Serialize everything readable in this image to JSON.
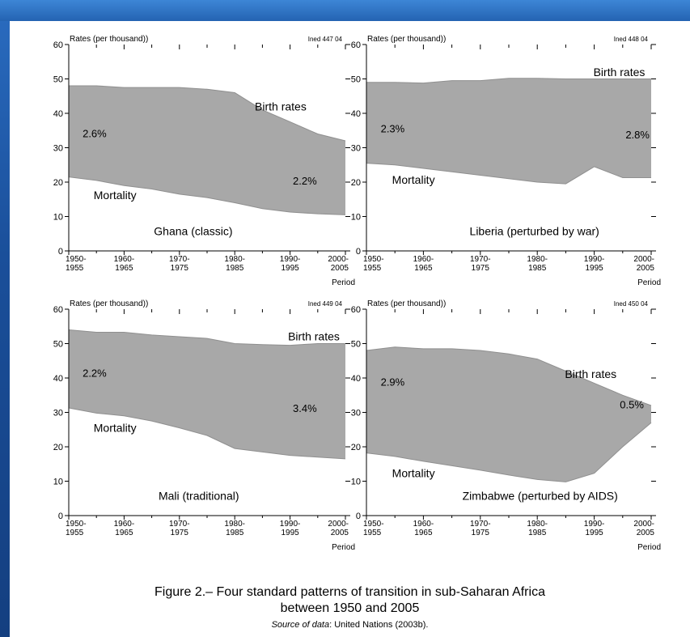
{
  "page": {
    "caption_main_1": "Figure 2.– Four standard patterns of transition in sub-Saharan Africa",
    "caption_main_2": "between 1950 and 2005",
    "caption_source_label": "Source of data",
    "caption_source_rest": ": United Nations (2003b).",
    "colors": {
      "band": "#a8a8a8",
      "panel": "#ffffff",
      "slide_bg": "#1c56a3",
      "axis": "#000000"
    }
  },
  "chart_data": [
    {
      "type": "area",
      "ylabel": "Rates (per thousand))",
      "id_label": "Ined 447 04",
      "xlabel": "Period",
      "x": [
        1952.5,
        1957.5,
        1962.5,
        1967.5,
        1972.5,
        1977.5,
        1982.5,
        1987.5,
        1992.5,
        1997.5,
        2002.5
      ],
      "x_ticks": [
        "1950-\n1955",
        "1960-\n1965",
        "1970-\n1975",
        "1980-\n1985",
        "1990-\n1995",
        "2000-\n2005"
      ],
      "ylim": [
        0,
        60
      ],
      "y_ticks": [
        0,
        10,
        20,
        30,
        40,
        50,
        60
      ],
      "series": [
        {
          "name": "Birth rates",
          "values": [
            48,
            48,
            47.5,
            47.5,
            47.5,
            47,
            46,
            41,
            37.5,
            34,
            32
          ]
        },
        {
          "name": "Mortality",
          "values": [
            21.5,
            20.5,
            19,
            18,
            16.5,
            15.5,
            14,
            12.3,
            11.3,
            10.8,
            10.5
          ]
        }
      ],
      "annotations": [
        {
          "text": "Birth rates",
          "x": 1994,
          "y": 42
        },
        {
          "text": "Mortality",
          "x": 1957,
          "y": 16.2
        },
        {
          "text": "2.6%",
          "x": 1955,
          "y": 34.2
        },
        {
          "text": "2.2%",
          "x": 1993,
          "y": 20.5
        },
        {
          "text": "Ghana (classic)",
          "x": 1975,
          "y": 5.8
        }
      ]
    },
    {
      "type": "area",
      "ylabel": "Rates (per thousand))",
      "id_label": "Ined 448 04",
      "xlabel": "Period",
      "x": [
        1952.5,
        1957.5,
        1962.5,
        1967.5,
        1972.5,
        1977.5,
        1982.5,
        1987.5,
        1992.5,
        1997.5,
        2002.5
      ],
      "x_ticks": [
        "1950-\n1955",
        "1960-\n1965",
        "1970-\n1975",
        "1980-\n1985",
        "1990-\n1995",
        "2000-\n2005"
      ],
      "ylim": [
        0,
        60
      ],
      "y_ticks": [
        0,
        10,
        20,
        30,
        40,
        50,
        60
      ],
      "series": [
        {
          "name": "Birth rates",
          "values": [
            49,
            49,
            48.8,
            49.5,
            49.5,
            50.2,
            50.2,
            50,
            50,
            50,
            50
          ]
        },
        {
          "name": "Mortality",
          "values": [
            25.5,
            25,
            24,
            23,
            22,
            21,
            20,
            19.5,
            24.5,
            21.3,
            21.3
          ]
        }
      ],
      "annotations": [
        {
          "text": "Birth rates",
          "x": 2000,
          "y": 52
        },
        {
          "text": "Mortality",
          "x": 1957,
          "y": 20.7
        },
        {
          "text": "2.3%",
          "x": 1955,
          "y": 35.7
        },
        {
          "text": "2.8%",
          "x": 1998,
          "y": 33.9
        },
        {
          "text": "Liberia (perturbed by war)",
          "x": 1982,
          "y": 5.8
        }
      ]
    },
    {
      "type": "area",
      "ylabel": "Rates (per thousand))",
      "id_label": "Ined 449 04",
      "xlabel": "Period",
      "x": [
        1952.5,
        1957.5,
        1962.5,
        1967.5,
        1972.5,
        1977.5,
        1982.5,
        1987.5,
        1992.5,
        1997.5,
        2002.5
      ],
      "x_ticks": [
        "1950-\n1955",
        "1960-\n1965",
        "1970-\n1975",
        "1980-\n1985",
        "1990-\n1995",
        "2000-\n2005"
      ],
      "ylim": [
        0,
        60
      ],
      "y_ticks": [
        0,
        10,
        20,
        30,
        40,
        50,
        60
      ],
      "series": [
        {
          "name": "Birth rates",
          "values": [
            54,
            53.3,
            53.3,
            52.5,
            52,
            51.5,
            50,
            49.7,
            49.5,
            50,
            50
          ]
        },
        {
          "name": "Mortality",
          "values": [
            31.3,
            29.8,
            29,
            27.5,
            25.5,
            23.3,
            19.5,
            18.5,
            17.5,
            17,
            16.5
          ]
        }
      ],
      "annotations": [
        {
          "text": "Birth rates",
          "x": 2000,
          "y": 52.1
        },
        {
          "text": "Mortality",
          "x": 1957,
          "y": 25.5
        },
        {
          "text": "2.2%",
          "x": 1955,
          "y": 41.5
        },
        {
          "text": "3.4%",
          "x": 1993,
          "y": 31.3
        },
        {
          "text": "Mali (traditional)",
          "x": 1976,
          "y": 5.8
        }
      ]
    },
    {
      "type": "area",
      "ylabel": "Rates (per thousand))",
      "id_label": "Ined 450 04",
      "xlabel": "Period",
      "x": [
        1952.5,
        1957.5,
        1962.5,
        1967.5,
        1972.5,
        1977.5,
        1982.5,
        1987.5,
        1992.5,
        1997.5,
        2002.5
      ],
      "x_ticks": [
        "1950-\n1955",
        "1960-\n1965",
        "1970-\n1975",
        "1980-\n1985",
        "1990-\n1995",
        "2000-\n2005"
      ],
      "ylim": [
        0,
        60
      ],
      "y_ticks": [
        0,
        10,
        20,
        30,
        40,
        50,
        60
      ],
      "series": [
        {
          "name": "Birth rates",
          "values": [
            48,
            49,
            48.5,
            48.5,
            48,
            47,
            45.5,
            42,
            38.5,
            35,
            32
          ]
        },
        {
          "name": "Mortality",
          "values": [
            18.2,
            17.2,
            15.8,
            14.5,
            13.2,
            11.8,
            10.5,
            9.8,
            12.3,
            20,
            27
          ]
        }
      ],
      "annotations": [
        {
          "text": "Birth rates",
          "x": 1995,
          "y": 41.2
        },
        {
          "text": "Mortality",
          "x": 1957,
          "y": 12.3
        },
        {
          "text": "2.9%",
          "x": 1955,
          "y": 38.9
        },
        {
          "text": "0.5%",
          "x": 1997,
          "y": 32.3
        },
        {
          "text": "Zimbabwe (perturbed by AIDS)",
          "x": 1983,
          "y": 5.8
        }
      ]
    }
  ]
}
